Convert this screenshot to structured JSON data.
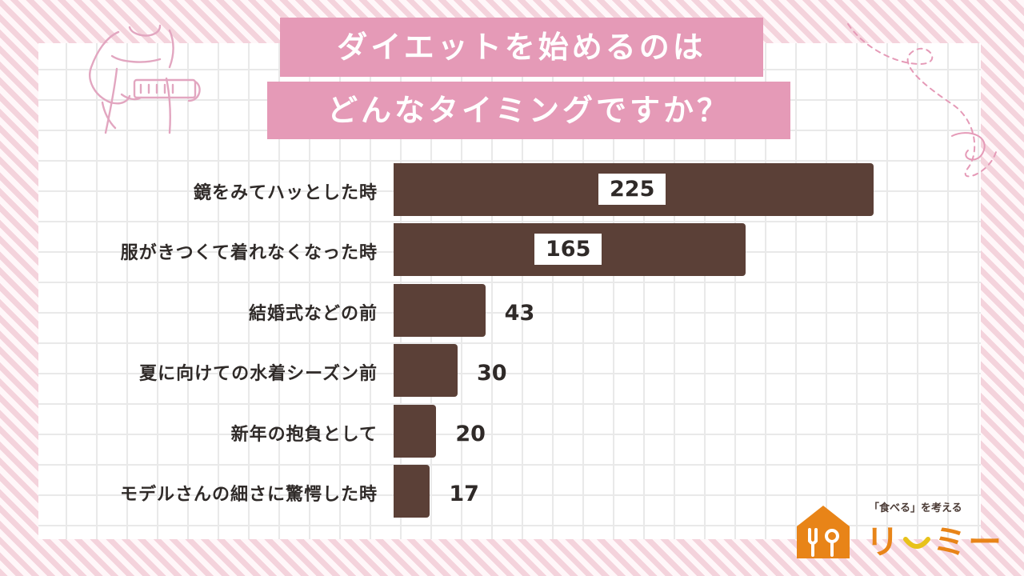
{
  "colors": {
    "bar": "#5b4037",
    "title_bg": "#e59ab7",
    "title_text": "#ffffff",
    "stripe": "#f4d3dc",
    "logo_orange": "#e88418",
    "logo_smile": "#e8c21a"
  },
  "header": {
    "title_line1": "ダイエットを始めるのは",
    "title_line2": "どんなタイミングですか？"
  },
  "chart_data": {
    "type": "bar",
    "orientation": "horizontal",
    "title": "ダイエットを始めるのはどんなタイミングですか？",
    "categories": [
      "鏡をみてハッとした時",
      "服がきつくて着れなくなった時",
      "結婚式などの前",
      "夏に向けての水着シーズン前",
      "新年の抱負として",
      "モデルさんの細さに驚愕した時"
    ],
    "values": [
      225,
      165,
      43,
      30,
      20,
      17
    ],
    "value_labels": [
      "225",
      "165",
      "43",
      "30",
      "20",
      "17"
    ],
    "xlim": [
      0,
      225
    ],
    "grid": true,
    "legend": "none"
  },
  "logo": {
    "tagline": "「食べる」を考える",
    "wordmark": "リ",
    "wordmark_tail": "ミー"
  },
  "icons": {
    "illustration": "waist-measure-illustration-icon",
    "logo_house": "house-fork-spoon-icon",
    "decoration": "curly-line-decoration-icon"
  }
}
